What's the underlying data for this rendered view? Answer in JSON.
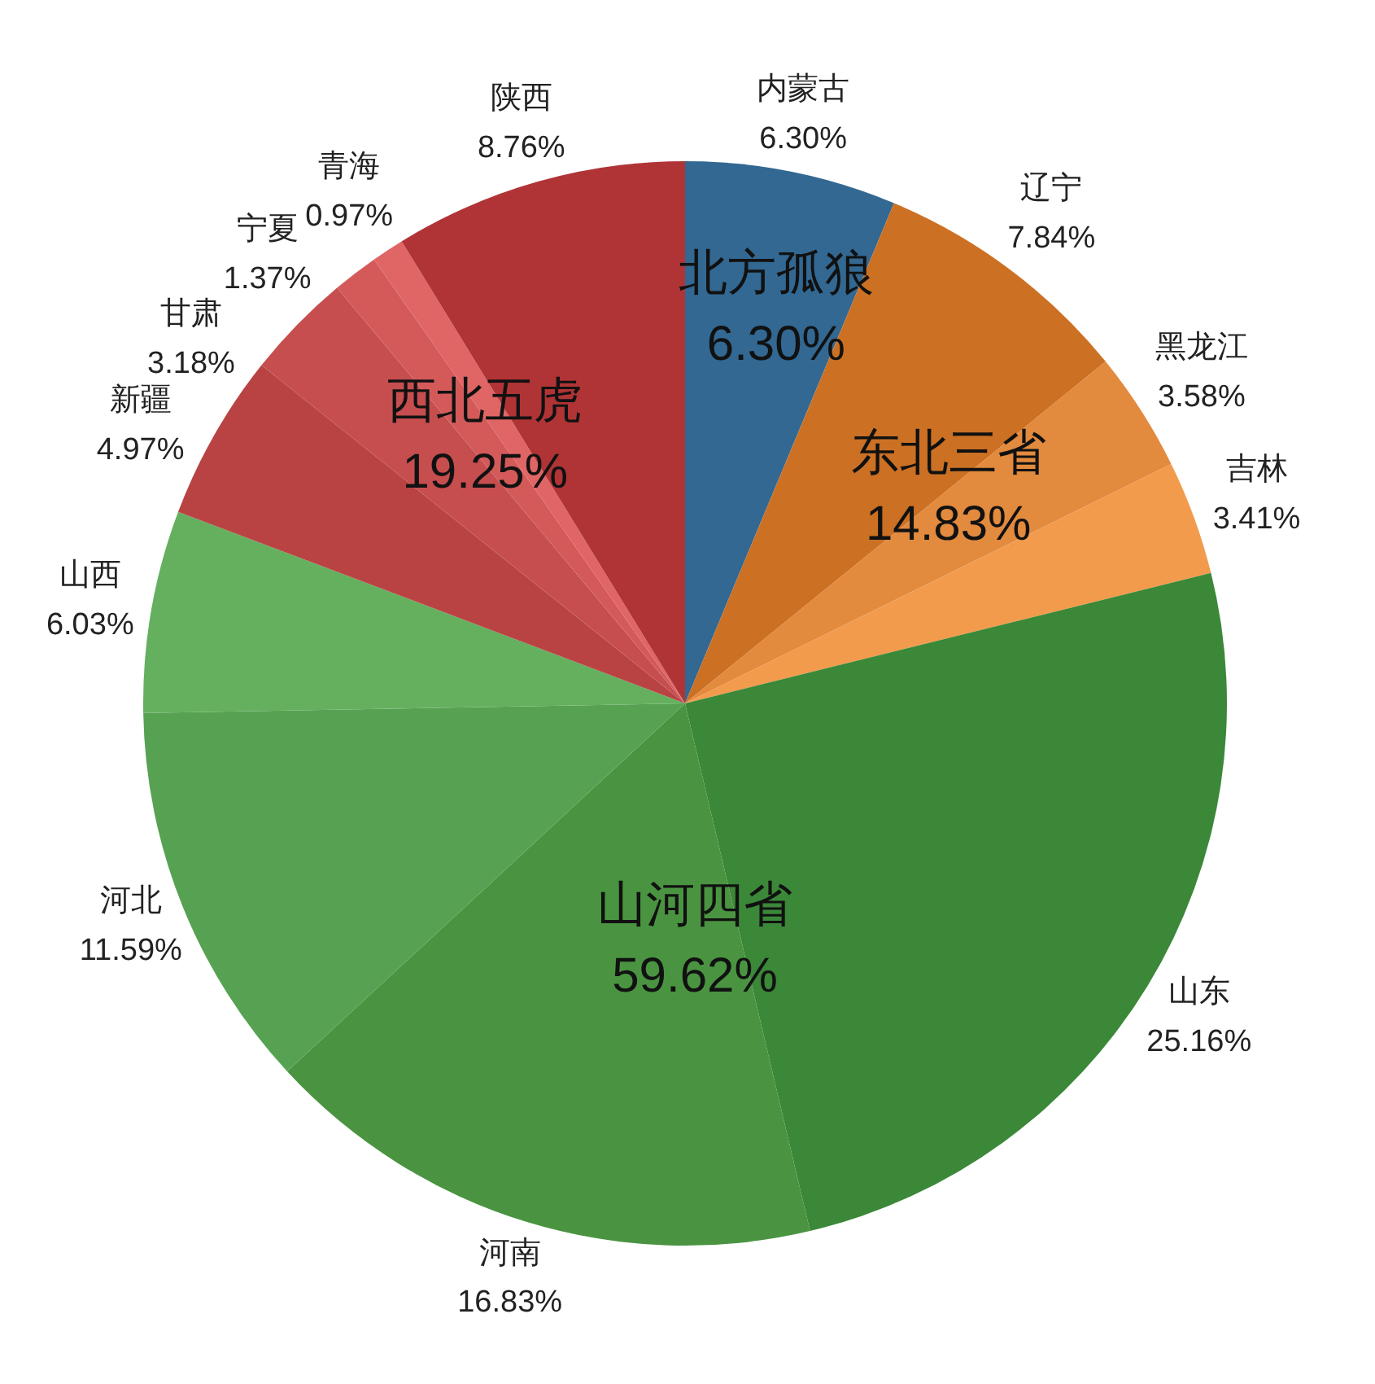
{
  "chart_data": {
    "type": "pie",
    "categories": [
      "内蒙古",
      "辽宁",
      "黑龙江",
      "吉林",
      "山东",
      "河南",
      "河北",
      "山西",
      "新疆",
      "甘肃",
      "宁夏",
      "青海",
      "陕西"
    ],
    "values": [
      6.3,
      7.84,
      3.58,
      3.41,
      25.16,
      16.83,
      11.59,
      6.03,
      4.97,
      3.18,
      1.37,
      0.97,
      8.76
    ],
    "value_labels": [
      "6.30%",
      "7.84%",
      "3.58%",
      "3.41%",
      "25.16%",
      "16.83%",
      "11.59%",
      "6.03%",
      "4.97%",
      "3.18%",
      "1.37%",
      "0.97%",
      "8.76%"
    ],
    "colors": [
      "#326892",
      "#cc7024",
      "#e28a3e",
      "#f29b4d",
      "#3b8838",
      "#4a9441",
      "#56a252",
      "#64b05f",
      "#b94343",
      "#c64e4e",
      "#d45a5a",
      "#e06565",
      "#b03436"
    ],
    "annotations": [
      "北方孤狼\n6.30%",
      "东北三省\n14.83%",
      "西北五虎\n19.25%",
      "山河四省\n59.62%"
    ]
  }
}
